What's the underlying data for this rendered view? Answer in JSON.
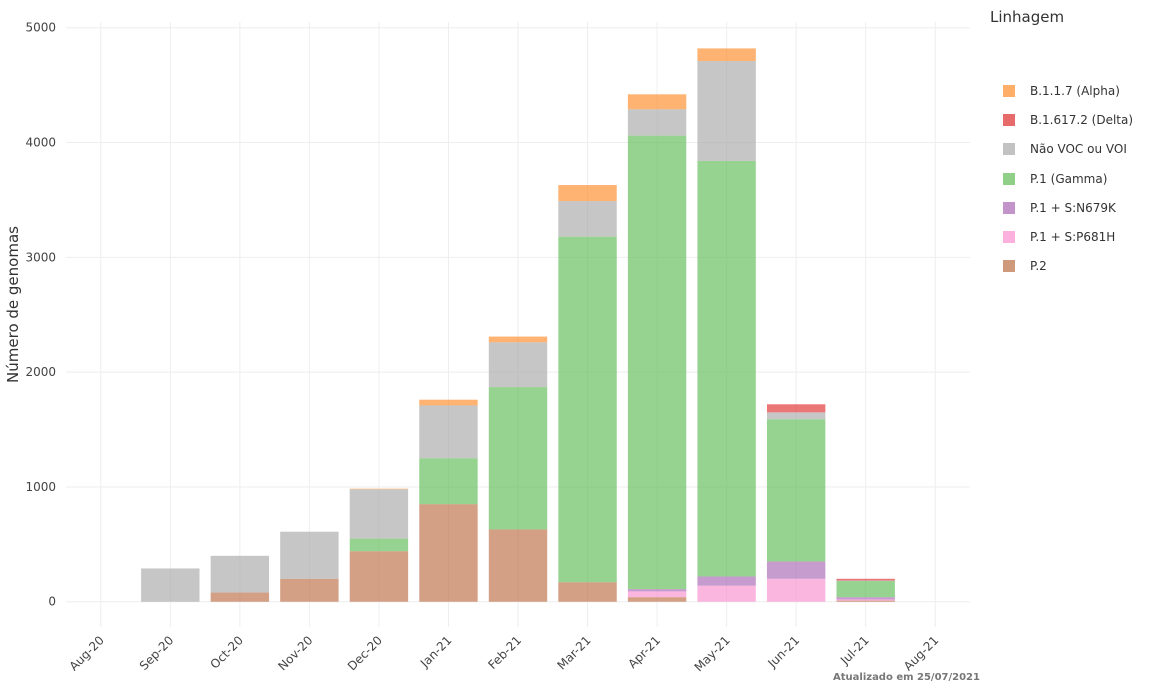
{
  "chart_data": {
    "type": "bar",
    "stacked": true,
    "ylabel": "Número de genomas",
    "legend_title": "Linhagem",
    "legend_position": "right",
    "footer": "Atualizado em 25/07/2021",
    "grid": true,
    "ylim": [
      -220,
      5050
    ],
    "yticks": [
      0,
      1000,
      2000,
      3000,
      4000,
      5000
    ],
    "x_tick_labels": [
      "Aug-20",
      "Sep-20",
      "Oct-20",
      "Nov-20",
      "Dec-20",
      "Jan-21",
      "Feb-21",
      "Mar-21",
      "Apr-21",
      "May-21",
      "Jun-21",
      "Jul-21",
      "Aug-21"
    ],
    "categories": [
      "Sep-20",
      "Oct-20",
      "Nov-20",
      "Dec-20",
      "Jan-21",
      "Feb-21",
      "Mar-21",
      "Apr-21",
      "May-21",
      "Jun-21",
      "Jul-21"
    ],
    "series": [
      {
        "name": "P.2",
        "color": "#bb6d44",
        "values": [
          0,
          80,
          200,
          440,
          850,
          630,
          170,
          40,
          0,
          0,
          10
        ]
      },
      {
        "name": "P.1 + S:P681H",
        "color": "#f98fcf",
        "values": [
          0,
          0,
          0,
          0,
          0,
          0,
          0,
          50,
          140,
          200,
          10
        ]
      },
      {
        "name": "P.1 + S:N679K",
        "color": "#a867b4",
        "values": [
          0,
          0,
          0,
          0,
          0,
          0,
          0,
          20,
          80,
          150,
          20
        ]
      },
      {
        "name": "P.1 (Gamma)",
        "color": "#5fbb55",
        "values": [
          0,
          0,
          0,
          110,
          400,
          1240,
          3010,
          3950,
          3620,
          1240,
          140
        ]
      },
      {
        "name": "Não VOC ou VOI",
        "color": "#a8a8a8",
        "values": [
          290,
          320,
          410,
          430,
          460,
          390,
          310,
          230,
          870,
          60,
          5
        ]
      },
      {
        "name": "B.1.617.2 (Delta)",
        "color": "#de2c2c",
        "values": [
          0,
          0,
          0,
          0,
          0,
          0,
          0,
          0,
          0,
          70,
          15
        ]
      },
      {
        "name": "B.1.1.7 (Alpha)",
        "color": "#fd8b27",
        "values": [
          0,
          0,
          0,
          5,
          50,
          50,
          140,
          130,
          110,
          0,
          0
        ]
      }
    ],
    "legend_order": [
      "B.1.1.7 (Alpha)",
      "B.1.617.2 (Delta)",
      "Não VOC ou VOI",
      "P.1 (Gamma)",
      "P.1 + S:N679K",
      "P.1 + S:P681H",
      "P.2"
    ]
  }
}
